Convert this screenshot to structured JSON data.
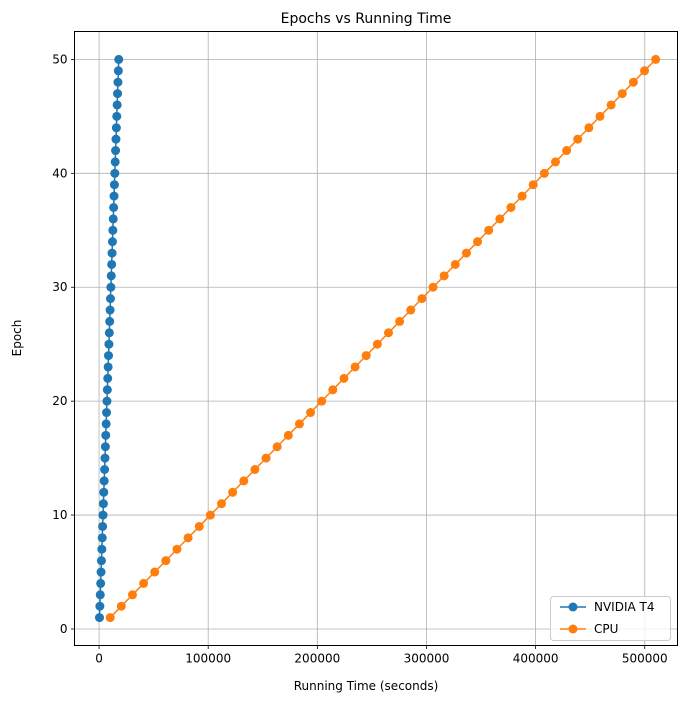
{
  "chart_data": {
    "type": "line",
    "title": "Epochs vs Running Time",
    "xlabel": "Running Time (seconds)",
    "ylabel": "Epoch",
    "xlim": [
      -22500,
      530000
    ],
    "ylim": [
      -1.45,
      52.45
    ],
    "xticks": [
      0,
      100000,
      200000,
      300000,
      400000,
      500000
    ],
    "xtick_labels": [
      "0",
      "100000",
      "200000",
      "300000",
      "400000",
      "500000"
    ],
    "yticks": [
      0,
      10,
      20,
      30,
      40,
      50
    ],
    "ytick_labels": [
      "0",
      "10",
      "20",
      "30",
      "40",
      "50"
    ],
    "grid": true,
    "legend_position": "bottom-right",
    "marker": "circle",
    "series": [
      {
        "name": "NVIDIA T4",
        "color": "#1f77b4",
        "x": [
          390,
          750,
          1110,
          1470,
          1830,
          2190,
          2550,
          2910,
          3270,
          3630,
          3990,
          4350,
          4710,
          5070,
          5430,
          5790,
          6150,
          6510,
          6870,
          7230,
          7590,
          7950,
          8310,
          8670,
          9030,
          9390,
          9750,
          10110,
          10470,
          10830,
          11190,
          11550,
          11910,
          12270,
          12630,
          12990,
          13350,
          13710,
          14070,
          14430,
          14790,
          15150,
          15510,
          15870,
          16230,
          16590,
          16950,
          17310,
          17670,
          18030
        ],
        "y": [
          1,
          2,
          3,
          4,
          5,
          6,
          7,
          8,
          9,
          10,
          11,
          12,
          13,
          14,
          15,
          16,
          17,
          18,
          19,
          20,
          21,
          22,
          23,
          24,
          25,
          26,
          27,
          28,
          29,
          30,
          31,
          32,
          33,
          34,
          35,
          36,
          37,
          38,
          39,
          40,
          41,
          42,
          43,
          44,
          45,
          46,
          47,
          48,
          49,
          50
        ]
      },
      {
        "name": "CPU",
        "color": "#ff7f0e",
        "x": [
          10200,
          20400,
          30600,
          40800,
          51000,
          61200,
          71400,
          81600,
          91800,
          102000,
          112200,
          122400,
          132600,
          142800,
          153000,
          163200,
          173400,
          183600,
          193800,
          204000,
          214200,
          224400,
          234600,
          244800,
          255000,
          265200,
          275400,
          285600,
          295800,
          306000,
          316200,
          326400,
          336600,
          346800,
          357000,
          367200,
          377400,
          387600,
          397800,
          408000,
          418200,
          428400,
          438600,
          448800,
          459000,
          469200,
          479400,
          489600,
          499800,
          510000
        ],
        "y": [
          1,
          2,
          3,
          4,
          5,
          6,
          7,
          8,
          9,
          10,
          11,
          12,
          13,
          14,
          15,
          16,
          17,
          18,
          19,
          20,
          21,
          22,
          23,
          24,
          25,
          26,
          27,
          28,
          29,
          30,
          31,
          32,
          33,
          34,
          35,
          36,
          37,
          38,
          39,
          40,
          41,
          42,
          43,
          44,
          45,
          46,
          47,
          48,
          49,
          50
        ]
      }
    ]
  }
}
